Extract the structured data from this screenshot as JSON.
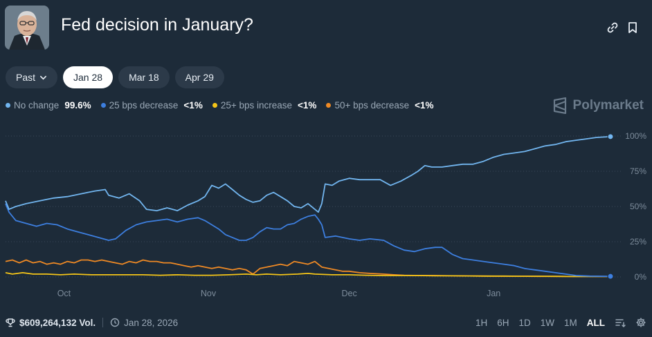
{
  "header": {
    "title": "Fed decision in January?"
  },
  "tabs": [
    {
      "label": "Past",
      "dropdown": true,
      "active": false
    },
    {
      "label": "Jan 28",
      "active": true
    },
    {
      "label": "Mar 18",
      "active": false
    },
    {
      "label": "Apr 29",
      "active": false
    }
  ],
  "legend": [
    {
      "label": "No change",
      "value": "99.6%",
      "color": "#72b6f0"
    },
    {
      "label": "25 bps decrease",
      "value": "<1%",
      "color": "#3d7fe0"
    },
    {
      "label": "25+ bps increase",
      "value": "<1%",
      "color": "#f5c518"
    },
    {
      "label": "50+ bps decrease",
      "value": "<1%",
      "color": "#f08a24"
    }
  ],
  "brand": {
    "name": "Polymarket",
    "icon": "polymarket-logo-icon"
  },
  "footer": {
    "volume": "$609,264,132 Vol.",
    "date": "Jan 28, 2026",
    "ranges": [
      "1H",
      "6H",
      "1D",
      "1W",
      "1M",
      "ALL"
    ],
    "active_range": "ALL",
    "icons": [
      "trophy-icon",
      "clock-icon",
      "filter-icon",
      "gear-icon"
    ]
  },
  "chart_data": {
    "type": "line",
    "x_ticks": [
      "Oct",
      "Nov",
      "Dec",
      "Jan"
    ],
    "y_ticks": [
      "100%",
      "75%",
      "50%",
      "25%",
      "0%"
    ],
    "ylim": [
      0,
      100
    ],
    "grid": true,
    "legend_position": "top-left",
    "x_index_range": [
      0,
      100
    ],
    "x_tick_index": [
      17,
      59,
      100,
      142
    ],
    "series": [
      {
        "name": "No change",
        "color": "#72b6f0",
        "points": [
          [
            0,
            54
          ],
          [
            1,
            48
          ],
          [
            3,
            50
          ],
          [
            6,
            52
          ],
          [
            10,
            54
          ],
          [
            14,
            56
          ],
          [
            18,
            57
          ],
          [
            22,
            59
          ],
          [
            26,
            61
          ],
          [
            29,
            62
          ],
          [
            30,
            58
          ],
          [
            33,
            56
          ],
          [
            36,
            59
          ],
          [
            39,
            54
          ],
          [
            41,
            48
          ],
          [
            44,
            47
          ],
          [
            47,
            49
          ],
          [
            50,
            47
          ],
          [
            53,
            51
          ],
          [
            56,
            54
          ],
          [
            58,
            57
          ],
          [
            60,
            65
          ],
          [
            62,
            63
          ],
          [
            64,
            66
          ],
          [
            66,
            62
          ],
          [
            68,
            58
          ],
          [
            70,
            55
          ],
          [
            72,
            53
          ],
          [
            74,
            54
          ],
          [
            76,
            58
          ],
          [
            78,
            60
          ],
          [
            80,
            57
          ],
          [
            82,
            54
          ],
          [
            84,
            50
          ],
          [
            86,
            49
          ],
          [
            88,
            52
          ],
          [
            90,
            48
          ],
          [
            91,
            46
          ],
          [
            92,
            52
          ],
          [
            93,
            66
          ],
          [
            95,
            65
          ],
          [
            97,
            68
          ],
          [
            100,
            70
          ],
          [
            103,
            69
          ],
          [
            106,
            69
          ],
          [
            109,
            69
          ],
          [
            112,
            65
          ],
          [
            115,
            68
          ],
          [
            118,
            72
          ],
          [
            120,
            75
          ],
          [
            122,
            79
          ],
          [
            124,
            78
          ],
          [
            127,
            78
          ],
          [
            130,
            79
          ],
          [
            133,
            80
          ],
          [
            136,
            80
          ],
          [
            139,
            82
          ],
          [
            142,
            85
          ],
          [
            145,
            87
          ],
          [
            148,
            88
          ],
          [
            151,
            89
          ],
          [
            154,
            91
          ],
          [
            157,
            93
          ],
          [
            160,
            94
          ],
          [
            163,
            96
          ],
          [
            166,
            97
          ],
          [
            169,
            98
          ],
          [
            172,
            99
          ],
          [
            176,
            99.6
          ]
        ]
      },
      {
        "name": "25 bps decrease",
        "color": "#3d7fe0",
        "points": [
          [
            0,
            52
          ],
          [
            1,
            46
          ],
          [
            3,
            40
          ],
          [
            6,
            38
          ],
          [
            9,
            36
          ],
          [
            12,
            38
          ],
          [
            15,
            37
          ],
          [
            18,
            34
          ],
          [
            21,
            32
          ],
          [
            24,
            30
          ],
          [
            27,
            28
          ],
          [
            30,
            26
          ],
          [
            32,
            27
          ],
          [
            35,
            33
          ],
          [
            38,
            37
          ],
          [
            41,
            39
          ],
          [
            44,
            40
          ],
          [
            47,
            41
          ],
          [
            50,
            39
          ],
          [
            53,
            41
          ],
          [
            56,
            42
          ],
          [
            58,
            40
          ],
          [
            60,
            37
          ],
          [
            62,
            34
          ],
          [
            64,
            30
          ],
          [
            66,
            28
          ],
          [
            68,
            26
          ],
          [
            70,
            26
          ],
          [
            72,
            28
          ],
          [
            74,
            32
          ],
          [
            76,
            35
          ],
          [
            78,
            34
          ],
          [
            80,
            34
          ],
          [
            82,
            37
          ],
          [
            84,
            38
          ],
          [
            86,
            41
          ],
          [
            88,
            43
          ],
          [
            90,
            44
          ],
          [
            91,
            41
          ],
          [
            92,
            37
          ],
          [
            93,
            28
          ],
          [
            96,
            29
          ],
          [
            100,
            27
          ],
          [
            103,
            26
          ],
          [
            106,
            27
          ],
          [
            110,
            26
          ],
          [
            113,
            22
          ],
          [
            116,
            19
          ],
          [
            119,
            18
          ],
          [
            122,
            20
          ],
          [
            125,
            21
          ],
          [
            127,
            21
          ],
          [
            130,
            16
          ],
          [
            133,
            13
          ],
          [
            136,
            12
          ],
          [
            139,
            11
          ],
          [
            142,
            10
          ],
          [
            145,
            9
          ],
          [
            148,
            8
          ],
          [
            151,
            6
          ],
          [
            154,
            5
          ],
          [
            157,
            4
          ],
          [
            160,
            3
          ],
          [
            163,
            2
          ],
          [
            166,
            1
          ],
          [
            170,
            0.6
          ],
          [
            176,
            0.4
          ]
        ]
      },
      {
        "name": "25+ bps increase",
        "color": "#f5c518",
        "points": [
          [
            0,
            3
          ],
          [
            2,
            2
          ],
          [
            5,
            3
          ],
          [
            8,
            2
          ],
          [
            12,
            2
          ],
          [
            16,
            1.5
          ],
          [
            20,
            2
          ],
          [
            25,
            1.5
          ],
          [
            30,
            1.5
          ],
          [
            35,
            1.5
          ],
          [
            40,
            1.5
          ],
          [
            45,
            1.2
          ],
          [
            50,
            1.5
          ],
          [
            55,
            1.2
          ],
          [
            60,
            1.2
          ],
          [
            65,
            1.5
          ],
          [
            70,
            2
          ],
          [
            73,
            1.5
          ],
          [
            76,
            2
          ],
          [
            80,
            1.5
          ],
          [
            85,
            2
          ],
          [
            88,
            2.5
          ],
          [
            90,
            2
          ],
          [
            95,
            1.5
          ],
          [
            100,
            1.5
          ],
          [
            105,
            1.2
          ],
          [
            110,
            1
          ],
          [
            115,
            1
          ],
          [
            120,
            1
          ],
          [
            125,
            0.8
          ],
          [
            130,
            0.8
          ],
          [
            135,
            0.7
          ],
          [
            140,
            0.6
          ],
          [
            145,
            0.6
          ],
          [
            150,
            0.5
          ],
          [
            155,
            0.5
          ],
          [
            160,
            0.4
          ],
          [
            165,
            0.3
          ],
          [
            170,
            0.3
          ],
          [
            176,
            0.3
          ]
        ]
      },
      {
        "name": "50+ bps decrease",
        "color": "#f08a24",
        "points": [
          [
            0,
            11
          ],
          [
            2,
            12
          ],
          [
            4,
            10
          ],
          [
            6,
            12
          ],
          [
            8,
            10
          ],
          [
            10,
            11
          ],
          [
            12,
            9
          ],
          [
            14,
            10
          ],
          [
            16,
            9
          ],
          [
            18,
            11
          ],
          [
            20,
            10
          ],
          [
            22,
            12
          ],
          [
            24,
            12
          ],
          [
            26,
            11
          ],
          [
            28,
            12
          ],
          [
            30,
            11
          ],
          [
            32,
            10
          ],
          [
            34,
            9
          ],
          [
            36,
            11
          ],
          [
            38,
            10
          ],
          [
            40,
            12
          ],
          [
            42,
            11
          ],
          [
            44,
            11
          ],
          [
            46,
            10
          ],
          [
            48,
            10
          ],
          [
            50,
            9
          ],
          [
            52,
            8
          ],
          [
            54,
            7
          ],
          [
            56,
            8
          ],
          [
            58,
            7
          ],
          [
            60,
            6
          ],
          [
            62,
            7
          ],
          [
            64,
            6
          ],
          [
            66,
            5
          ],
          [
            68,
            6
          ],
          [
            70,
            5
          ],
          [
            72,
            2
          ],
          [
            74,
            6
          ],
          [
            76,
            7
          ],
          [
            78,
            8
          ],
          [
            80,
            9
          ],
          [
            82,
            8
          ],
          [
            84,
            11
          ],
          [
            86,
            10
          ],
          [
            88,
            9
          ],
          [
            90,
            11
          ],
          [
            92,
            7
          ],
          [
            94,
            6
          ],
          [
            96,
            5
          ],
          [
            98,
            4
          ],
          [
            100,
            4
          ],
          [
            103,
            3
          ],
          [
            106,
            2.5
          ],
          [
            110,
            2
          ],
          [
            113,
            1.5
          ],
          [
            116,
            1.2
          ],
          [
            120,
            1
          ],
          [
            125,
            1
          ],
          [
            130,
            0.8
          ],
          [
            135,
            0.7
          ],
          [
            140,
            0.6
          ],
          [
            145,
            0.5
          ],
          [
            150,
            0.5
          ],
          [
            155,
            0.4
          ],
          [
            160,
            0.4
          ],
          [
            165,
            0.3
          ],
          [
            170,
            0.3
          ],
          [
            176,
            0.3
          ]
        ]
      }
    ]
  }
}
